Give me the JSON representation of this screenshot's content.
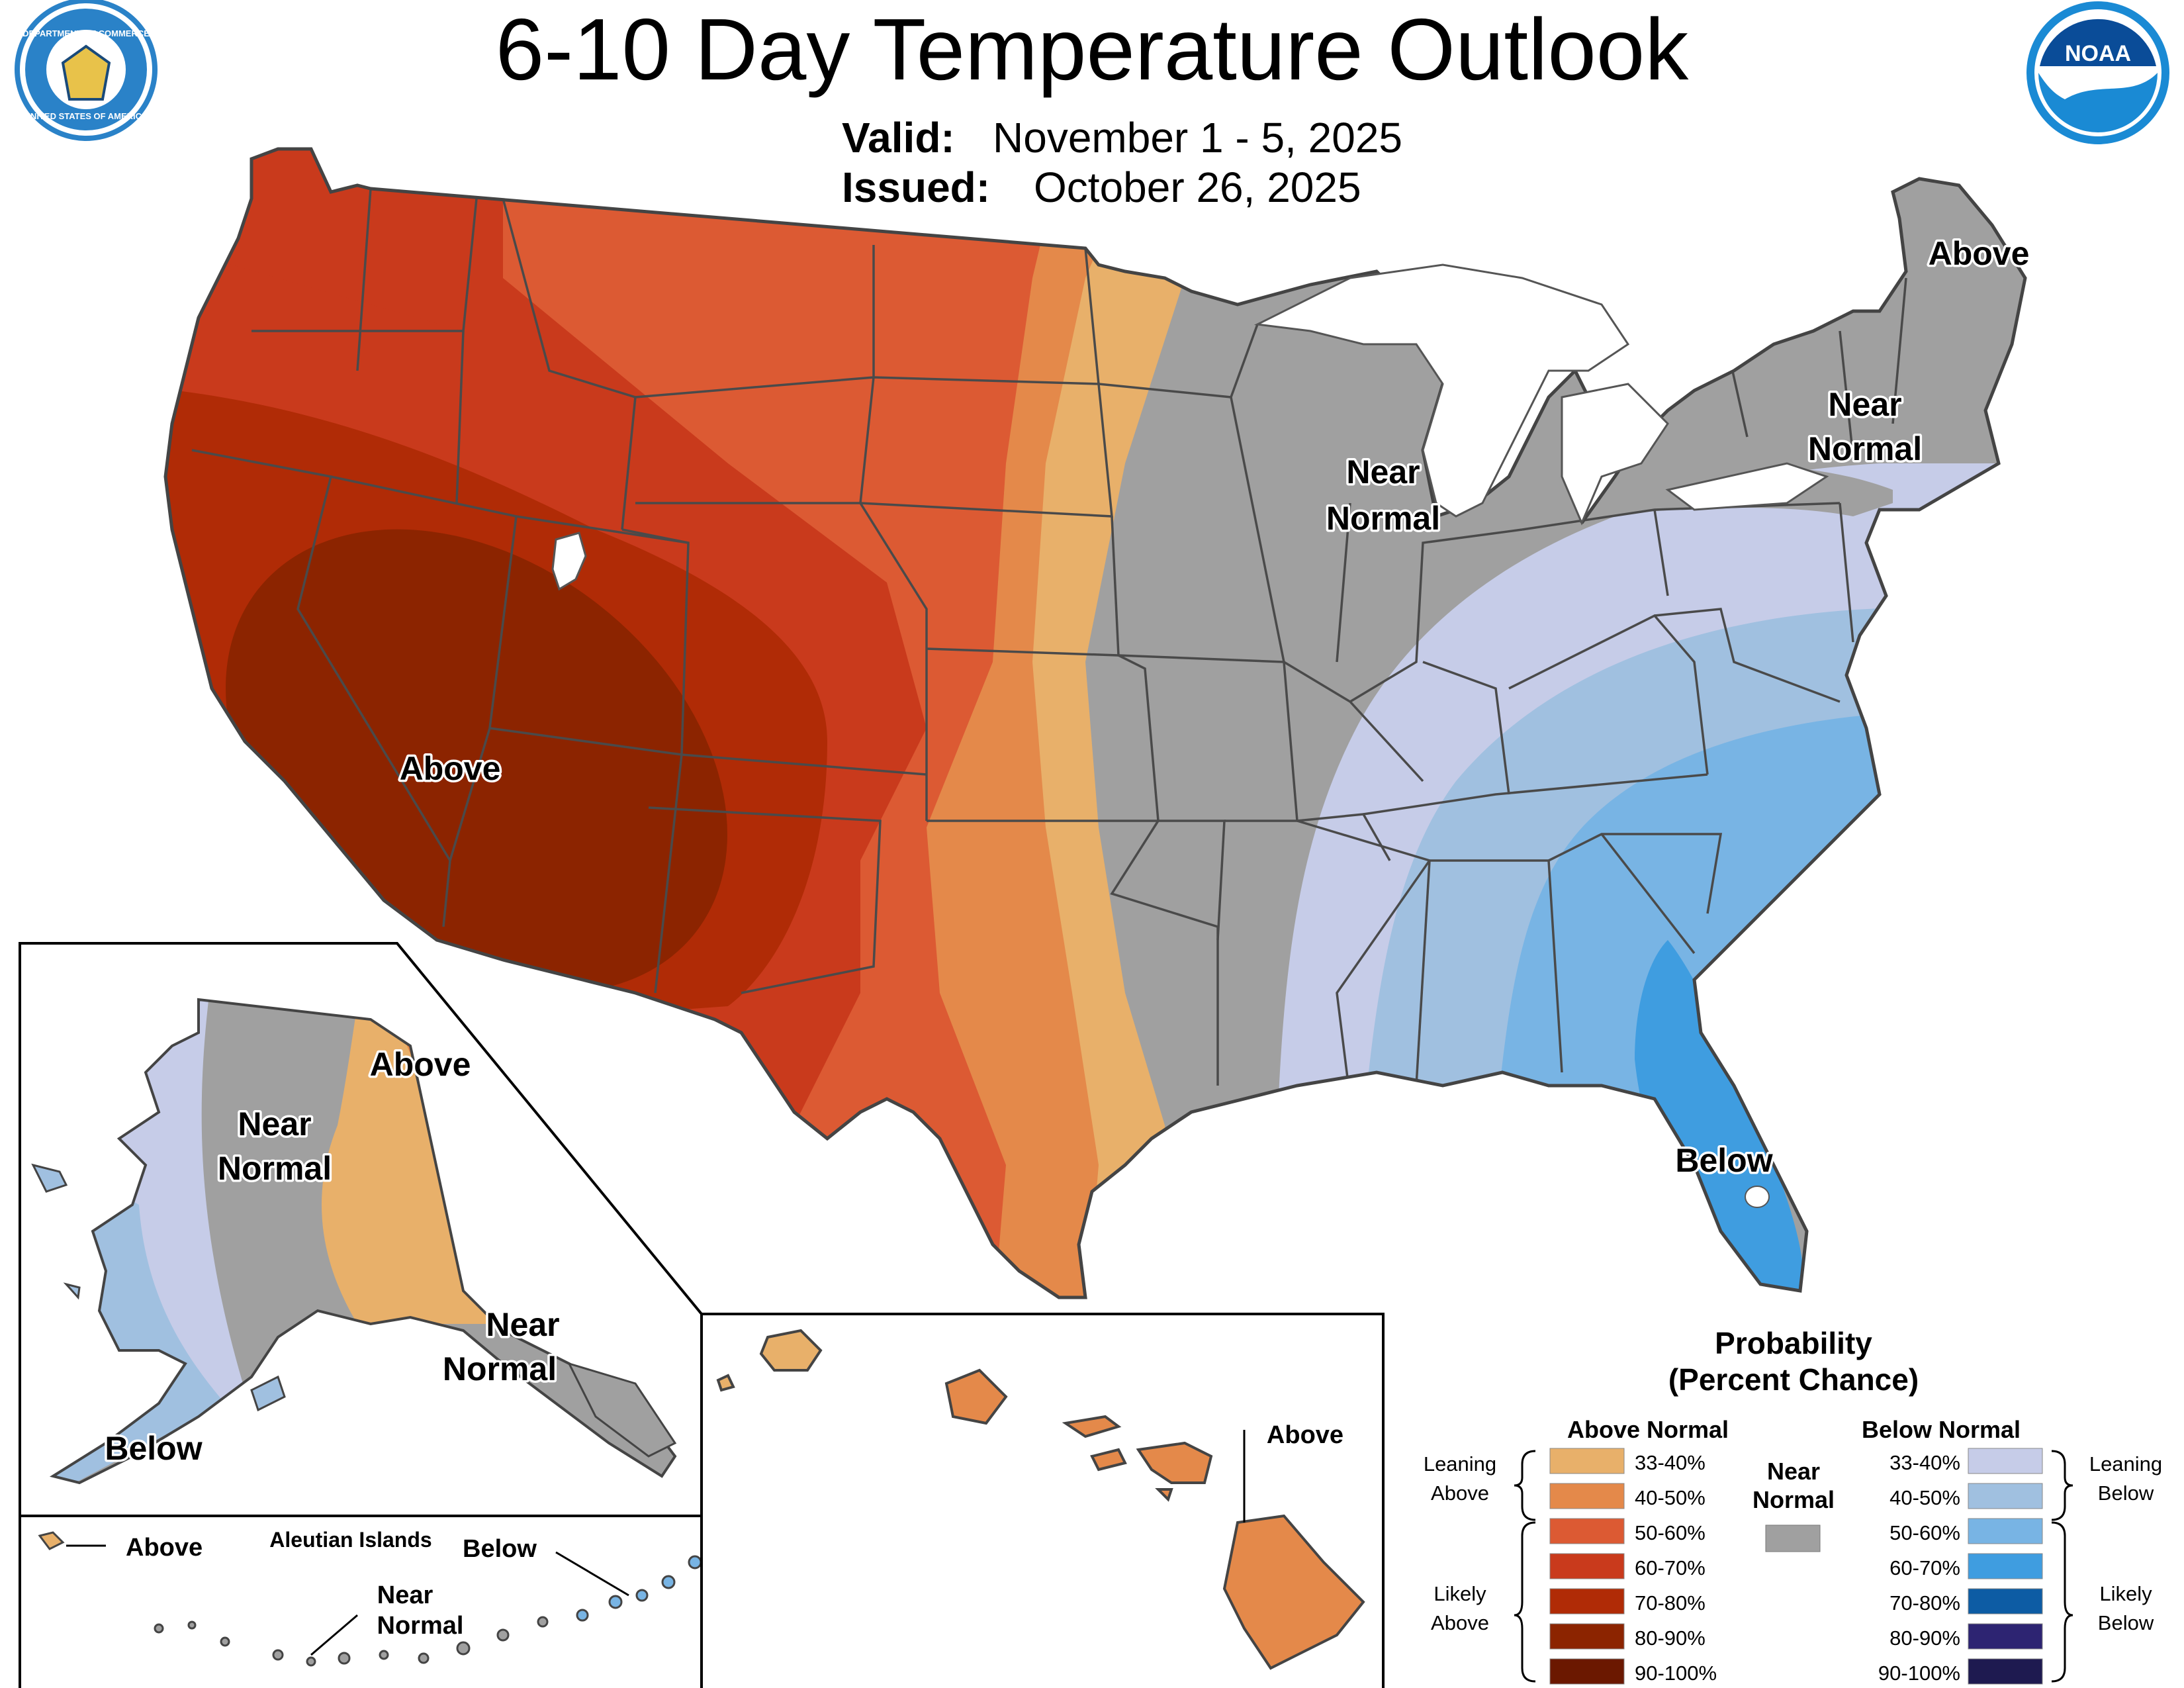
{
  "header": {
    "title": "6-10 Day Temperature Outlook",
    "valid_label": "Valid:",
    "valid_value": "November 1 - 5, 2025",
    "issued_label": "Issued:",
    "issued_value": "October 26, 2025"
  },
  "logos": {
    "left": "department-of-commerce-seal",
    "left_text_top": "DEPARTMENT OF COMMERCE",
    "left_text_bottom": "UNITED STATES OF AMERICA",
    "right": "noaa-logo",
    "right_text": "NOAA"
  },
  "regions": {
    "conus": [
      {
        "text": "Above",
        "x": "",
        "category": "above"
      },
      {
        "text": "Near",
        "category": "near"
      },
      {
        "text": "Normal",
        "category": "near"
      },
      {
        "text": "Near",
        "category": "near"
      },
      {
        "text": "Normal",
        "category": "near"
      },
      {
        "text": "Above",
        "category": "above"
      },
      {
        "text": "Below",
        "category": "below"
      }
    ],
    "alaska": [
      {
        "text": "Near"
      },
      {
        "text": "Normal"
      },
      {
        "text": "Above"
      },
      {
        "text": "Near"
      },
      {
        "text": "Normal"
      },
      {
        "text": "Below"
      }
    ],
    "aleutian": {
      "title": "Aleutian Islands",
      "above": "Above",
      "below": "Below",
      "near1": "Near",
      "near2": "Normal"
    },
    "hawaii": {
      "above": "Above"
    }
  },
  "legend": {
    "title1": "Probability",
    "title2": "(Percent Chance)",
    "above_header": "Above Normal",
    "below_header": "Below Normal",
    "near_line1": "Near",
    "near_line2": "Normal",
    "near_color": "#a0a0a0",
    "leaning_above": [
      "Leaning",
      "Above"
    ],
    "likely_above": [
      "Likely",
      "Above"
    ],
    "leaning_below": [
      "Leaning",
      "Below"
    ],
    "likely_below": [
      "Likely",
      "Below"
    ],
    "above_bins": [
      {
        "label": "33-40%",
        "color": "#e8b06a"
      },
      {
        "label": "40-50%",
        "color": "#e4894a"
      },
      {
        "label": "50-60%",
        "color": "#dc5a33"
      },
      {
        "label": "60-70%",
        "color": "#c93a1c"
      },
      {
        "label": "70-80%",
        "color": "#b02b06"
      },
      {
        "label": "80-90%",
        "color": "#8c2400"
      },
      {
        "label": "90-100%",
        "color": "#6b1800"
      }
    ],
    "below_bins": [
      {
        "label": "33-40%",
        "color": "#c6cce8"
      },
      {
        "label": "40-50%",
        "color": "#a0c0e0"
      },
      {
        "label": "50-60%",
        "color": "#78b4e4"
      },
      {
        "label": "60-70%",
        "color": "#3f9de0"
      },
      {
        "label": "70-80%",
        "color": "#0d5ca4"
      },
      {
        "label": "80-90%",
        "color": "#2d2472"
      },
      {
        "label": "90-100%",
        "color": "#1e1a50"
      }
    ]
  }
}
